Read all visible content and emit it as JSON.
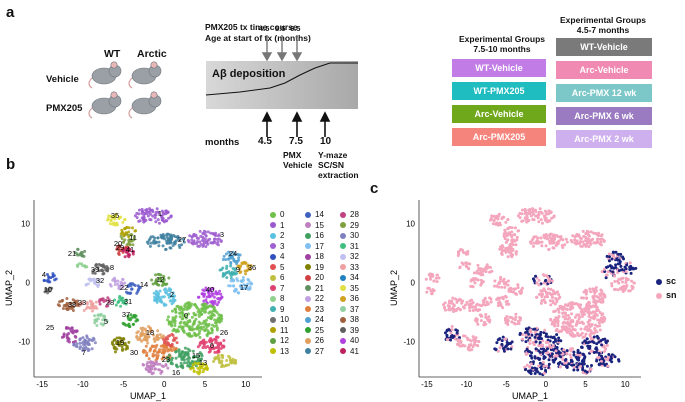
{
  "panel_a": {
    "letter": "a",
    "groups_col": [
      "WT",
      "Arctic"
    ],
    "rows": [
      "Vehicle",
      "PMX205"
    ],
    "tx_title": "PMX205 tx time course",
    "tx_subtitle": "Age at start of tx (months)",
    "start_ages": [
      "4.5",
      "5.5",
      "6.5"
    ],
    "deposition_label": "Aβ deposition",
    "months_label": "months",
    "timepoints": [
      {
        "value": "4.5",
        "note": ""
      },
      {
        "value": "7.5",
        "note": "PMX Vehicle"
      },
      {
        "value": "10",
        "note": "Y-maze SC/SN extraction"
      }
    ],
    "exp1": {
      "title": "Experimental Groups 7.5-10 months",
      "items": [
        {
          "label": "WT-Vehicle",
          "color": "#c27ce6"
        },
        {
          "label": "WT-PMX205",
          "color": "#1fbcc0"
        },
        {
          "label": "Arc-Vehicle",
          "color": "#6fa81a"
        },
        {
          "label": "Arc-PMX205",
          "color": "#f5857c"
        }
      ]
    },
    "exp2": {
      "title": "Experimental Groups 4.5-7 months",
      "items": [
        {
          "label": "WT-Vehicle",
          "color": "#7a7a7a"
        },
        {
          "label": "Arc-Vehicle",
          "color": "#f08ab3"
        },
        {
          "label": "Arc-PMX 12 wk",
          "color": "#7cc8c8"
        },
        {
          "label": "Arc-PMX 6 wk",
          "color": "#9a7ac0"
        },
        {
          "label": "Arc-PMX 2 wk",
          "color": "#cfb0ee"
        }
      ]
    }
  },
  "panel_b": {
    "letter": "b",
    "xlabel": "UMAP_1",
    "ylabel": "UMAP_2",
    "xticks": [
      "-15",
      "-10",
      "-5",
      "0",
      "5",
      "10"
    ],
    "yticks": [
      "10",
      "0",
      "-10"
    ],
    "clusters": [
      "0",
      "1",
      "2",
      "3",
      "4",
      "5",
      "6",
      "7",
      "8",
      "9",
      "10",
      "11",
      "12",
      "13",
      "14",
      "15",
      "16",
      "17",
      "18",
      "19",
      "20",
      "21",
      "22",
      "23",
      "24",
      "25",
      "26",
      "27",
      "28",
      "29",
      "30",
      "31",
      "32",
      "33",
      "34",
      "35",
      "36",
      "37",
      "38",
      "39",
      "40",
      "41"
    ],
    "plot_labels": [
      "35",
      "1",
      "21",
      "29",
      "11",
      "20",
      "41",
      "27",
      "3",
      "24",
      "39",
      "8",
      "4",
      "36",
      "9",
      "10",
      "32",
      "22",
      "14",
      "31",
      "40",
      "2",
      "17",
      "12",
      "0",
      "28",
      "33",
      "38",
      "5",
      "37",
      "25",
      "18",
      "19",
      "26",
      "7",
      "30",
      "23",
      "15",
      "6",
      "16",
      "13"
    ]
  },
  "panel_c": {
    "letter": "c",
    "xlabel": "UMAP_1",
    "ylabel": "UMAP_2",
    "xticks": [
      "-15",
      "-10",
      "-5",
      "0",
      "5",
      "10"
    ],
    "yticks": [
      "10",
      "0",
      "-10"
    ],
    "legend": [
      {
        "label": "sc",
        "color": "#1a237e"
      },
      {
        "label": "sn",
        "color": "#f4a6bd"
      }
    ]
  },
  "colors": {
    "cluster_palette": [
      "#6fbf4a",
      "#9b59d0",
      "#58c0e0",
      "#a060d0",
      "#3050c0",
      "#e05050",
      "#c0c040",
      "#e04070",
      "#8fd08f",
      "#40b0b0",
      "#707070",
      "#b0a000",
      "#60a040",
      "#c0c000",
      "#4060c0",
      "#c080c0",
      "#40a060",
      "#80c0f0",
      "#a040a0",
      "#808000",
      "#d04040",
      "#609060",
      "#c0a0e0",
      "#e08040",
      "#50a0d0",
      "#30a030",
      "#e0a060",
      "#4080a0",
      "#c04080",
      "#80a040",
      "#8080c0",
      "#40c080",
      "#c0c0f0",
      "#f0a0a0",
      "#2080c0",
      "#e0e040",
      "#d0a020",
      "#90d0a0",
      "#a06040",
      "#606060",
      "#b040e0",
      "#c02060"
    ]
  }
}
